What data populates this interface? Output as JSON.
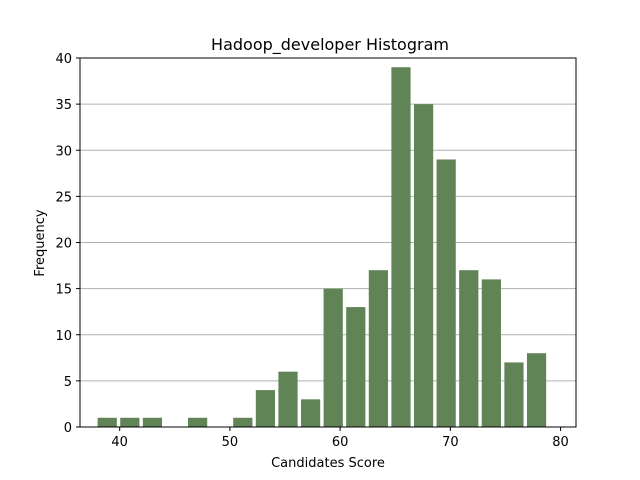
{
  "chart_data": {
    "type": "bar",
    "title": "Hadoop_developer Histogram",
    "xlabel": "Candidates Score",
    "ylabel": "Frequency",
    "xlim": [
      36.4,
      81.4
    ],
    "ylim": [
      0,
      40
    ],
    "xticks": [
      40,
      50,
      60,
      70,
      80
    ],
    "yticks": [
      0,
      5,
      10,
      15,
      20,
      25,
      30,
      35,
      40
    ],
    "bin_width": 2.05,
    "bar_fraction": 0.85,
    "bin_starts": [
      38.0,
      40.05,
      42.1,
      44.15,
      46.2,
      48.25,
      50.3,
      52.35,
      54.4,
      56.45,
      58.5,
      60.55,
      62.6,
      64.65,
      66.7,
      68.75,
      70.8,
      72.85,
      74.9,
      76.95
    ],
    "values": [
      1,
      1,
      1,
      0,
      1,
      0,
      1,
      4,
      6,
      3,
      15,
      13,
      17,
      39,
      35,
      29,
      17,
      16,
      7,
      8
    ],
    "grid": "horizontal",
    "bar_color": "#618456",
    "grid_color": "#b0b0b0"
  }
}
